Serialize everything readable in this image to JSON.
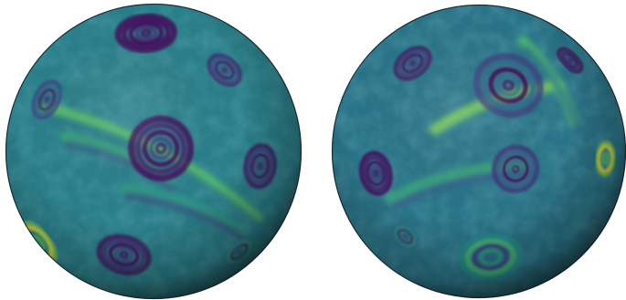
{
  "figure": {
    "background": "#ffffff",
    "colormap": [
      "#440154",
      "#3b528b",
      "#21918c",
      "#5ec962",
      "#fde725"
    ],
    "spheres": [
      {
        "base_color": "#2a7f8a",
        "vortices": [
          {
            "u": -0.05,
            "v": -0.8,
            "r": 0.19,
            "tone": 0.05
          },
          {
            "u": 0.05,
            "v": -0.02,
            "r": 0.2,
            "tone": 0.12
          },
          {
            "u": -0.2,
            "v": 0.7,
            "r": 0.17,
            "tone": 0.18
          },
          {
            "u": -0.78,
            "v": 0.62,
            "r": 0.16,
            "tone": 0.95
          },
          {
            "u": 0.58,
            "v": 0.68,
            "r": 0.12,
            "tone": 0.55
          },
          {
            "u": 0.72,
            "v": 0.1,
            "r": 0.14,
            "tone": 0.2
          },
          {
            "u": -0.72,
            "v": -0.35,
            "r": 0.13,
            "tone": 0.35
          },
          {
            "u": 0.48,
            "v": -0.55,
            "r": 0.12,
            "tone": 0.25
          }
        ],
        "streaks": [
          {
            "u1": -0.75,
            "v1": -0.3,
            "u2": 0.7,
            "v2": 0.45,
            "tone": 0.75
          },
          {
            "u1": -0.6,
            "v1": -0.1,
            "u2": 0.1,
            "v2": 0.2,
            "tone": 0.6
          },
          {
            "u1": -0.2,
            "v1": 0.25,
            "u2": 0.6,
            "v2": 0.55,
            "tone": 0.55
          }
        ]
      },
      {
        "base_color": "#2a7488",
        "vortices": [
          {
            "u": 0.2,
            "v": -0.45,
            "r": 0.22,
            "tone": 0.35
          },
          {
            "u": 0.25,
            "v": 0.12,
            "r": 0.15,
            "tone": 0.3
          },
          {
            "u": 0.08,
            "v": 0.72,
            "r": 0.2,
            "tone": 0.65
          },
          {
            "u": 0.86,
            "v": 0.05,
            "r": 0.11,
            "tone": 0.98
          },
          {
            "u": -0.7,
            "v": 0.15,
            "r": 0.14,
            "tone": 0.1
          },
          {
            "u": -0.45,
            "v": -0.6,
            "r": 0.13,
            "tone": 0.2
          },
          {
            "u": 0.62,
            "v": -0.62,
            "r": 0.1,
            "tone": 0.15
          },
          {
            "u": -0.5,
            "v": 0.58,
            "r": 0.1,
            "tone": 0.5
          }
        ],
        "streaks": [
          {
            "u1": -0.3,
            "v1": -0.15,
            "u2": 0.55,
            "v2": -0.45,
            "tone": 0.8
          },
          {
            "u1": -0.6,
            "v1": 0.32,
            "u2": 0.3,
            "v2": 0.1,
            "tone": 0.6
          },
          {
            "u1": 0.3,
            "v1": -0.75,
            "u2": 0.65,
            "v2": -0.2,
            "tone": 0.7
          }
        ]
      }
    ]
  }
}
